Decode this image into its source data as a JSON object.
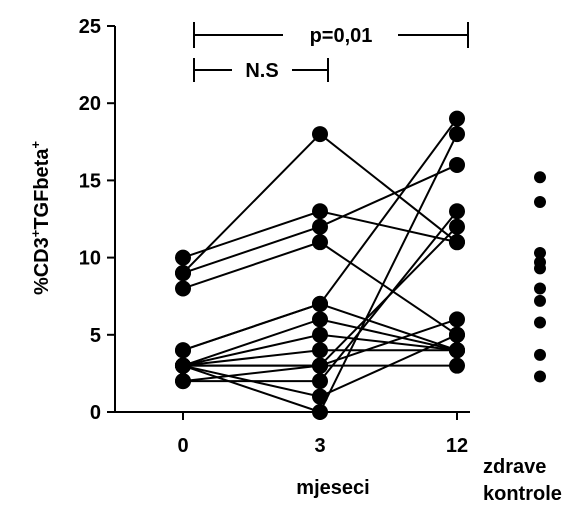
{
  "chart_data": {
    "type": "scatter",
    "title": "",
    "ylabel_main": "%CD3",
    "ylabel_sup1": "+",
    "ylabel_mid": "TGFbeta",
    "ylabel_sup2": "+",
    "xlabel": "mjeseci",
    "ylim": [
      0,
      25
    ],
    "y_ticks": [
      "0",
      "5",
      "10",
      "15",
      "20",
      "25"
    ],
    "x_ticks": [
      "0",
      "3",
      "12"
    ],
    "healthy_label_line1": "zdrave",
    "healthy_label_line2": "kontrole",
    "paired_series": [
      [
        10,
        13,
        11
      ],
      [
        9,
        12,
        16
      ],
      [
        9,
        18,
        11
      ],
      [
        8,
        11,
        5
      ],
      [
        4,
        7,
        4
      ],
      [
        4,
        7,
        19
      ],
      [
        3,
        4,
        4
      ],
      [
        3,
        6,
        4
      ],
      [
        3,
        5,
        4
      ],
      [
        3,
        3,
        12
      ],
      [
        3,
        1,
        5
      ],
      [
        3,
        0,
        18
      ],
      [
        2,
        3,
        6
      ],
      [
        2,
        2,
        13
      ],
      [
        3,
        3,
        3
      ]
    ],
    "healthy_controls": [
      15.2,
      13.6,
      10.3,
      9.7,
      9.3,
      8.0,
      7.2,
      5.8,
      3.7,
      2.3
    ],
    "annotations": {
      "bracket_long": "p=0,01",
      "bracket_short": "N.S"
    }
  }
}
